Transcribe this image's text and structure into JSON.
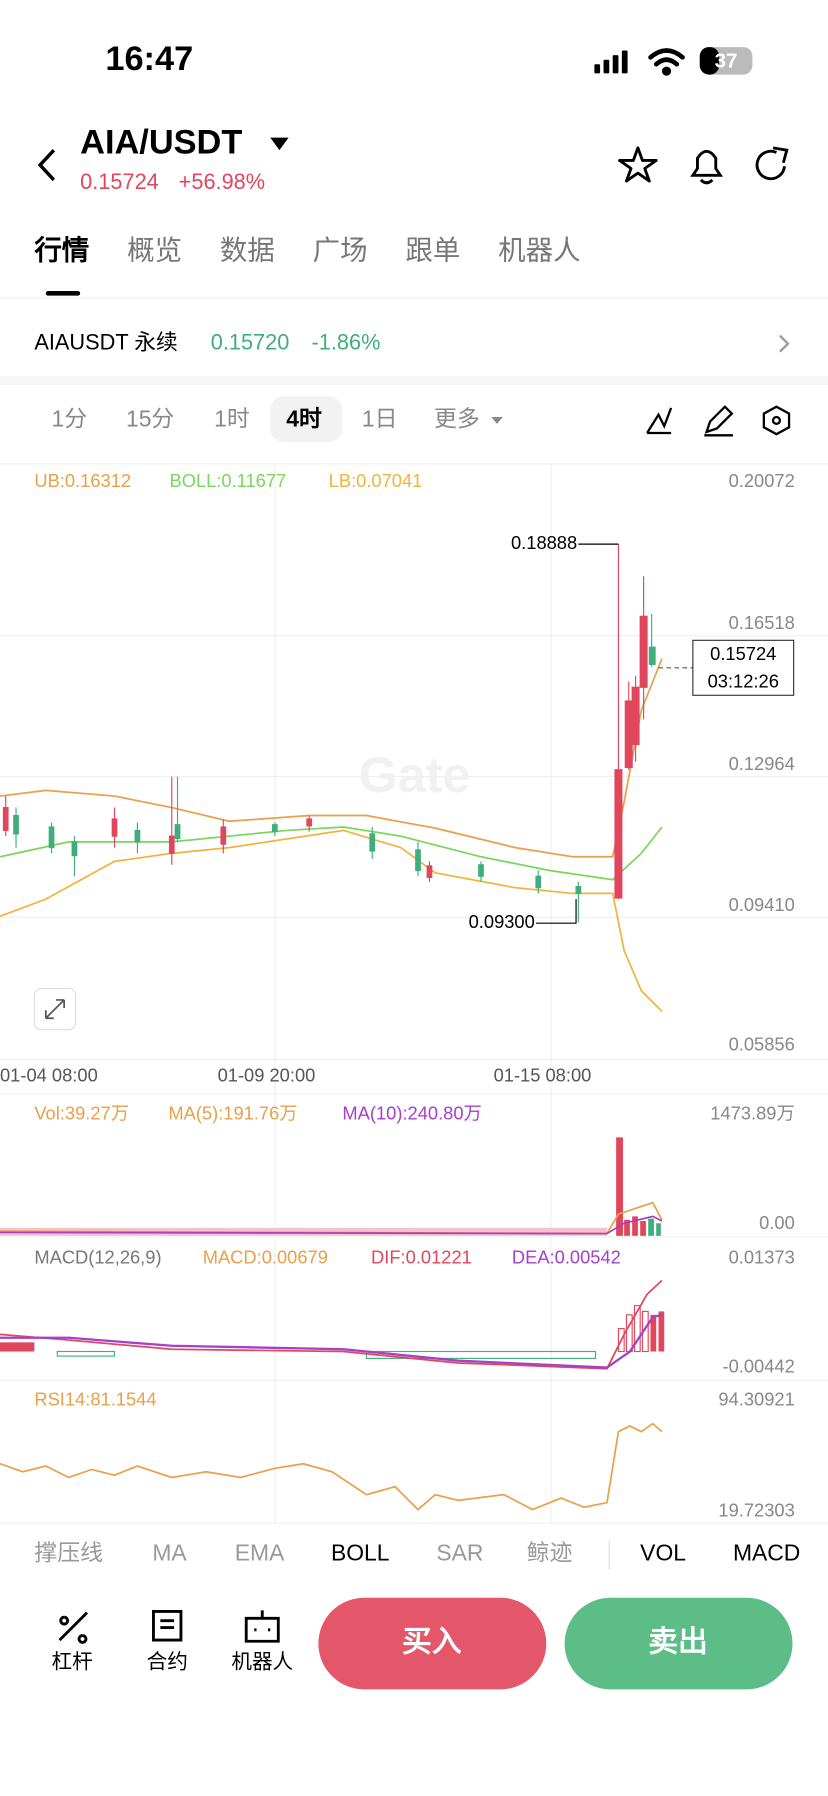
{
  "status": {
    "time": "16:47",
    "battery": "37"
  },
  "header": {
    "pair": "AIA/USDT",
    "price": "0.15724",
    "change": "+56.98%"
  },
  "tabs": [
    "行情",
    "概览",
    "数据",
    "广场",
    "跟单",
    "机器人"
  ],
  "perp": {
    "symbol": "AIAUSDT 永续",
    "price": "0.15720",
    "change": "-1.86%"
  },
  "intervals": [
    "1分",
    "15分",
    "1时",
    "4时",
    "1日",
    "更多"
  ],
  "chart": {
    "watermark": "Gate",
    "ub": "UB:0.16312",
    "boll": "BOLL:0.11677",
    "lb": "LB:0.07041",
    "price_labels": [
      "0.20072",
      "0.16518",
      "0.12964",
      "0.09410",
      "0.05856"
    ],
    "high": "0.18888",
    "low": "0.09300",
    "current": "0.15724",
    "countdown": "03:12:26",
    "dates": [
      "01-04 08:00",
      "01-09 20:00",
      "01-15 08:00"
    ]
  },
  "volume": {
    "vol": "Vol:39.27万",
    "ma5": "MA(5):191.76万",
    "ma10": "MA(10):240.80万",
    "max": "1473.89万",
    "min": "0.00"
  },
  "macd": {
    "title": "MACD(12,26,9)",
    "macd": "MACD:0.00679",
    "dif": "DIF:0.01221",
    "dea": "DEA:0.00542",
    "max": "0.01373",
    "min": "-0.00442"
  },
  "rsi": {
    "label": "RSI14:81.1544",
    "max": "94.30921",
    "min": "19.72303"
  },
  "indicators": [
    "撑压线",
    "MA",
    "EMA",
    "BOLL",
    "SAR",
    "鲸迹",
    "VOL",
    "MACD"
  ],
  "bottom": {
    "tools": [
      "杠杆",
      "合约",
      "机器人"
    ],
    "buy": "买入",
    "sell": "卖出"
  }
}
